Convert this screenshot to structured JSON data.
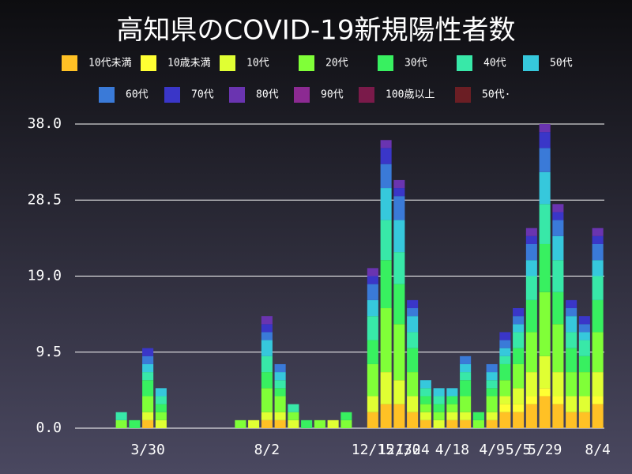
{
  "chart_data": {
    "type": "bar",
    "stacked": true,
    "title": "高知県のCOVID-19新規陽性者数",
    "categories": [
      null,
      null,
      null,
      null,
      null,
      "3/30",
      null,
      null,
      null,
      null,
      null,
      null,
      null,
      null,
      "8/2",
      null,
      null,
      null,
      null,
      null,
      null,
      null,
      "12/15",
      null,
      "12/30",
      "1/24",
      null,
      null,
      "4/18",
      null,
      null,
      "4/9",
      null,
      "5/5",
      null,
      "5/29",
      null,
      null,
      null,
      "8/4"
    ],
    "ylim": [
      0,
      38
    ],
    "yticks": [
      {
        "value": 0,
        "label": "0.0"
      },
      {
        "value": 9.5,
        "label": "9.5"
      },
      {
        "value": 19,
        "label": "19.0"
      },
      {
        "value": 28.5,
        "label": "28.5"
      },
      {
        "value": 38,
        "label": "38.0"
      }
    ],
    "grid": true,
    "series": [
      {
        "name": "10代未満",
        "color": "#ffc125",
        "values": [
          0,
          0,
          0,
          0,
          0,
          1,
          0,
          0,
          0,
          0,
          0,
          0,
          0,
          0,
          1,
          1,
          0,
          0,
          0,
          0,
          0,
          0,
          2,
          3,
          3,
          2,
          1,
          0,
          1,
          1,
          0,
          1,
          2,
          2,
          3,
          4,
          3,
          2,
          2,
          3
        ]
      },
      {
        "name": "10歳未満",
        "color": "#ffff33",
        "values": [
          0,
          0,
          0,
          0,
          0,
          0,
          0,
          0,
          0,
          0,
          0,
          0,
          0,
          0,
          0,
          0,
          0,
          0,
          0,
          0,
          0,
          0,
          0,
          0,
          0,
          0,
          0,
          0,
          0,
          0,
          0,
          0,
          1,
          1,
          1,
          1,
          1,
          0,
          0,
          1
        ]
      },
      {
        "name": "10代",
        "color": "#e0ff33",
        "values": [
          0,
          0,
          0,
          0,
          0,
          1,
          1,
          0,
          0,
          0,
          0,
          0,
          0,
          1,
          1,
          1,
          1,
          0,
          0,
          1,
          0,
          0,
          2,
          4,
          3,
          2,
          1,
          1,
          1,
          1,
          0,
          1,
          1,
          2,
          3,
          4,
          3,
          2,
          2,
          3
        ]
      },
      {
        "name": "20代",
        "color": "#80ff38",
        "values": [
          0,
          0,
          0,
          1,
          0,
          2,
          1,
          0,
          0,
          0,
          0,
          0,
          1,
          0,
          3,
          2,
          1,
          0,
          1,
          0,
          1,
          0,
          4,
          8,
          7,
          3,
          1,
          1,
          1,
          2,
          1,
          2,
          2,
          3,
          5,
          8,
          6,
          3,
          3,
          5
        ]
      },
      {
        "name": "30代",
        "color": "#38f060",
        "values": [
          0,
          0,
          0,
          0,
          1,
          2,
          1,
          0,
          0,
          0,
          0,
          0,
          0,
          0,
          2,
          1,
          0,
          1,
          0,
          0,
          1,
          0,
          3,
          6,
          5,
          3,
          1,
          1,
          1,
          2,
          1,
          1,
          2,
          2,
          4,
          6,
          4,
          3,
          2,
          4
        ]
      },
      {
        "name": "40代",
        "color": "#38e8a8",
        "values": [
          0,
          0,
          0,
          1,
          0,
          1,
          1,
          0,
          0,
          0,
          0,
          0,
          0,
          0,
          2,
          1,
          1,
          0,
          0,
          0,
          0,
          0,
          3,
          5,
          4,
          2,
          1,
          1,
          0,
          1,
          0,
          1,
          1,
          2,
          3,
          5,
          4,
          2,
          2,
          3
        ]
      },
      {
        "name": "50代",
        "color": "#36c8dc",
        "values": [
          0,
          0,
          0,
          0,
          0,
          1,
          1,
          0,
          0,
          0,
          0,
          0,
          0,
          0,
          2,
          1,
          0,
          0,
          0,
          0,
          0,
          0,
          2,
          4,
          4,
          2,
          1,
          1,
          1,
          1,
          0,
          1,
          1,
          1,
          2,
          4,
          3,
          2,
          1,
          2
        ]
      },
      {
        "name": "60代",
        "color": "#3a7ad8",
        "values": [
          0,
          0,
          0,
          0,
          0,
          1,
          0,
          0,
          0,
          0,
          0,
          0,
          0,
          0,
          1,
          1,
          0,
          0,
          0,
          0,
          0,
          0,
          2,
          3,
          3,
          1,
          0,
          0,
          0,
          1,
          0,
          1,
          1,
          1,
          2,
          3,
          2,
          1,
          1,
          2
        ]
      },
      {
        "name": "70代",
        "color": "#3a36c8",
        "values": [
          0,
          0,
          0,
          0,
          0,
          1,
          0,
          0,
          0,
          0,
          0,
          0,
          0,
          0,
          1,
          0,
          0,
          0,
          0,
          0,
          0,
          0,
          1,
          2,
          1,
          1,
          0,
          0,
          0,
          0,
          0,
          0,
          1,
          1,
          1,
          2,
          1,
          1,
          1,
          1
        ]
      },
      {
        "name": "80代",
        "color": "#6a34b0",
        "values": [
          0,
          0,
          0,
          0,
          0,
          0,
          0,
          0,
          0,
          0,
          0,
          0,
          0,
          0,
          1,
          0,
          0,
          0,
          0,
          0,
          0,
          0,
          1,
          1,
          1,
          0,
          0,
          0,
          0,
          0,
          0,
          0,
          0,
          0,
          1,
          1,
          1,
          0,
          0,
          1
        ]
      },
      {
        "name": "90代",
        "color": "#8c2a92",
        "values": [
          0,
          0,
          0,
          0,
          0,
          0,
          0,
          0,
          0,
          0,
          0,
          0,
          0,
          0,
          0,
          0,
          0,
          0,
          0,
          0,
          0,
          0,
          0,
          0,
          0,
          0,
          0,
          0,
          0,
          0,
          0,
          0,
          0,
          0,
          0,
          0,
          0,
          0,
          0,
          0
        ]
      },
      {
        "name": "100歳以上",
        "color": "#7a1a4a",
        "values": [
          0,
          0,
          0,
          0,
          0,
          0,
          0,
          0,
          0,
          0,
          0,
          0,
          0,
          0,
          0,
          0,
          0,
          0,
          0,
          0,
          0,
          0,
          0,
          0,
          0,
          0,
          0,
          0,
          0,
          0,
          0,
          0,
          0,
          0,
          0,
          0,
          0,
          0,
          0,
          0
        ]
      },
      {
        "name": "50代·",
        "color": "#6b1e24",
        "values": [
          0,
          0,
          0,
          0,
          0,
          0,
          0,
          0,
          0,
          0,
          0,
          0,
          0,
          0,
          0,
          0,
          0,
          0,
          0,
          0,
          0,
          0,
          0,
          0,
          0,
          0,
          0,
          0,
          0,
          0,
          0,
          0,
          0,
          0,
          0,
          0,
          0,
          0,
          0,
          0
        ]
      }
    ]
  }
}
